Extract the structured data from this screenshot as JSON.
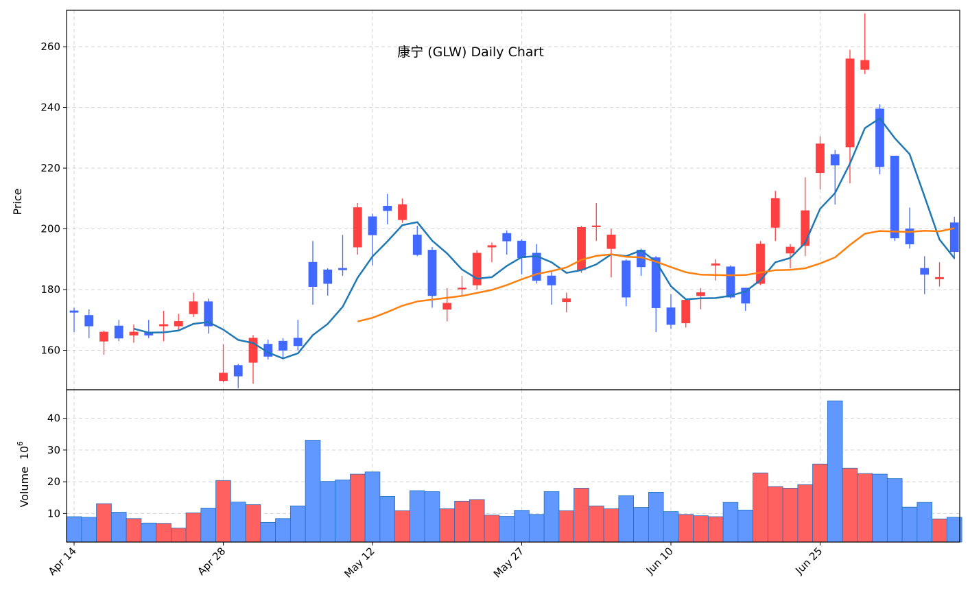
{
  "chart_data": [
    {
      "type": "candlestick",
      "title": "康宁 (GLW) Daily Chart",
      "ylabel": "Price",
      "ylim": [
        147,
        272
      ],
      "yticks": [
        160,
        180,
        200,
        220,
        240,
        260
      ],
      "grid": true,
      "colors": {
        "up": "#ff4040",
        "down": "#4169ff",
        "ma_short": "#1f77b4",
        "ma_long": "#ff7f0e"
      },
      "dates": [
        "Apr 14",
        "Apr 15",
        "Apr 16",
        "Apr 17",
        "Apr 18",
        "Apr 21",
        "Apr 22",
        "Apr 23",
        "Apr 24",
        "Apr 25",
        "Apr 28",
        "Apr 29",
        "Apr 30",
        "May 1",
        "May 2",
        "May 5",
        "May 6",
        "May 7",
        "May 8",
        "May 9",
        "May 12",
        "May 13",
        "May 14",
        "May 15",
        "May 16",
        "May 19",
        "May 20",
        "May 21",
        "May 22",
        "May 23",
        "May 27",
        "May 28",
        "May 29",
        "May 30",
        "Jun 2",
        "Jun 3",
        "Jun 4",
        "Jun 5",
        "Jun 6",
        "Jun 9",
        "Jun 10",
        "Jun 11",
        "Jun 12",
        "Jun 13",
        "Jun 16",
        "Jun 17",
        "Jun 18",
        "Jun 20",
        "Jun 23",
        "Jun 24",
        "Jun 25",
        "Jun 26",
        "Jun 27",
        "Jun 30",
        "Jul 1",
        "Jul 2",
        "Jul 3",
        "Jul 7",
        "Jul 8",
        "Jul 9"
      ],
      "ohlc": [
        [
          173,
          174,
          166,
          172.5
        ],
        [
          171.5,
          173.5,
          164,
          168
        ],
        [
          163,
          166.5,
          158.5,
          166
        ],
        [
          168,
          170,
          163,
          164
        ],
        [
          165,
          168.5,
          162.5,
          166
        ],
        [
          166,
          170,
          164,
          165
        ],
        [
          168,
          173,
          163,
          168.5
        ],
        [
          168,
          172,
          166.5,
          169.5
        ],
        [
          172,
          179,
          171,
          176
        ],
        [
          176,
          177,
          165.5,
          168
        ],
        [
          150,
          162,
          149.5,
          152.5
        ],
        [
          155,
          155.5,
          147.5,
          151.5
        ],
        [
          156,
          165,
          149,
          164
        ],
        [
          162,
          163.5,
          157,
          158
        ],
        [
          163,
          164,
          157.5,
          160
        ],
        [
          164,
          170,
          160,
          161.5
        ],
        [
          189,
          196,
          175,
          181
        ],
        [
          186.5,
          187,
          178,
          182
        ],
        [
          187,
          198,
          184.5,
          186.5
        ],
        [
          194,
          208.5,
          191.5,
          207
        ],
        [
          204,
          205,
          188,
          198
        ],
        [
          207.5,
          211.5,
          201.5,
          206
        ],
        [
          203,
          210,
          202,
          208
        ],
        [
          198,
          201,
          191,
          191.5
        ],
        [
          193,
          194,
          174,
          178
        ],
        [
          173.5,
          180.5,
          169.5,
          175.5
        ],
        [
          180.5,
          184.5,
          178,
          180.5
        ],
        [
          181.5,
          193,
          180,
          192
        ],
        [
          194,
          195.5,
          189,
          194.5
        ],
        [
          198.5,
          199.5,
          191.5,
          196
        ],
        [
          196,
          196.5,
          185,
          190.5
        ],
        [
          192,
          195,
          182,
          183
        ],
        [
          184.5,
          186,
          175,
          181.5
        ],
        [
          176,
          179,
          172.5,
          177
        ],
        [
          186.5,
          201,
          185.5,
          200.5
        ],
        [
          201,
          208.5,
          196,
          201
        ],
        [
          193.5,
          200,
          184,
          198
        ],
        [
          189.5,
          190,
          174.5,
          177.5
        ],
        [
          193,
          193.5,
          184.5,
          187.5
        ],
        [
          190.5,
          191,
          166,
          174
        ],
        [
          174,
          178.5,
          167,
          168.5
        ],
        [
          169,
          176.5,
          167.5,
          176.5
        ],
        [
          178,
          180.5,
          173.5,
          179
        ],
        [
          188,
          190,
          183,
          188.5
        ],
        [
          187.5,
          188,
          177,
          177.5
        ],
        [
          180.5,
          180.5,
          173,
          175.5
        ],
        [
          182,
          196,
          181.5,
          195
        ],
        [
          200.5,
          212.5,
          196,
          210
        ],
        [
          192,
          195,
          187,
          194
        ],
        [
          194.5,
          217,
          191,
          206
        ],
        [
          218.5,
          230.5,
          213,
          228
        ],
        [
          224.5,
          226,
          208,
          221
        ],
        [
          227,
          259,
          215,
          256
        ],
        [
          252.5,
          271,
          251,
          255.5
        ],
        [
          239.5,
          241,
          218,
          220.5
        ],
        [
          224,
          224,
          196,
          197
        ],
        [
          200,
          207,
          193.5,
          195
        ],
        [
          187,
          191,
          178.5,
          185
        ],
        [
          183.5,
          189,
          181,
          184
        ],
        [
          202,
          204,
          190,
          192.5
        ]
      ],
      "ma_short": [
        null,
        null,
        null,
        null,
        167.1,
        165.8,
        165.9,
        166.5,
        168.7,
        169.3,
        166.8,
        163.4,
        162.4,
        159.3,
        157.3,
        159.0,
        165.0,
        168.7,
        174.3,
        183.9,
        190.9,
        195.9,
        201.2,
        202.2,
        196.1,
        191.9,
        186.6,
        183.6,
        184.1,
        187.8,
        190.7,
        191.0,
        189.0,
        185.5,
        186.4,
        188.3,
        191.6,
        191.0,
        192.9,
        189.2,
        181.1,
        176.8,
        177.1,
        177.2,
        178.0,
        179.4,
        183.1,
        189.0,
        190.4,
        195.4,
        206.6,
        211.8,
        221.5,
        233.2,
        236.4,
        229.9,
        224.6,
        210.6,
        196.5,
        190.3
      ],
      "ma_long": [
        null,
        null,
        null,
        null,
        null,
        null,
        null,
        null,
        null,
        null,
        null,
        null,
        null,
        null,
        null,
        null,
        null,
        null,
        null,
        169.5,
        170.7,
        172.6,
        174.7,
        176.1,
        176.7,
        177.3,
        177.9,
        178.9,
        179.9,
        181.5,
        183.4,
        185.1,
        186.1,
        187.3,
        189.8,
        191.1,
        191.6,
        190.8,
        190.6,
        189.2,
        187.4,
        185.7,
        184.9,
        184.8,
        184.7,
        184.8,
        185.6,
        186.4,
        186.5,
        187.0,
        188.6,
        190.6,
        194.7,
        198.4,
        199.3,
        199.1,
        199.0,
        199.4,
        199.2,
        200.2
      ]
    },
    {
      "type": "bar",
      "ylabel": "Volume",
      "yunit": "10^6",
      "ylim": [
        1,
        49
      ],
      "yticks": [
        10,
        20,
        30,
        40
      ],
      "grid": true,
      "colors": {
        "up": "#ff6060",
        "down": "#6098ff",
        "edge": "#1f6fc0"
      },
      "values": [
        9,
        8.8,
        13.1,
        10.4,
        8.4,
        7,
        6.9,
        5.4,
        10.2,
        11.7,
        20.4,
        13.6,
        12.8,
        7.2,
        8.4,
        12.4,
        33.1,
        20.1,
        20.6,
        22.4,
        23.1,
        15.4,
        10.9,
        17.2,
        16.9,
        11.5,
        13.9,
        14.4,
        9.5,
        9.1,
        11,
        9.7,
        16.9,
        10.9,
        18,
        12.4,
        11.5,
        15.6,
        11.9,
        16.7,
        10.6,
        9.7,
        9.3,
        9,
        13.5,
        11.1,
        22.8,
        18.5,
        18,
        19.1,
        25.6,
        45.5,
        24.3,
        22.6,
        22.4,
        21,
        12,
        13.5,
        8.3,
        8.8
      ]
    }
  ],
  "xaxis": {
    "tick_labels": [
      "Apr 14",
      "Apr 28",
      "May 12",
      "May 27",
      "Jun 10",
      "Jun 25"
    ],
    "tick_index": [
      0,
      10,
      20,
      30,
      40,
      50
    ]
  },
  "volume_unit_power": "6",
  "volume_unit_base": "10"
}
